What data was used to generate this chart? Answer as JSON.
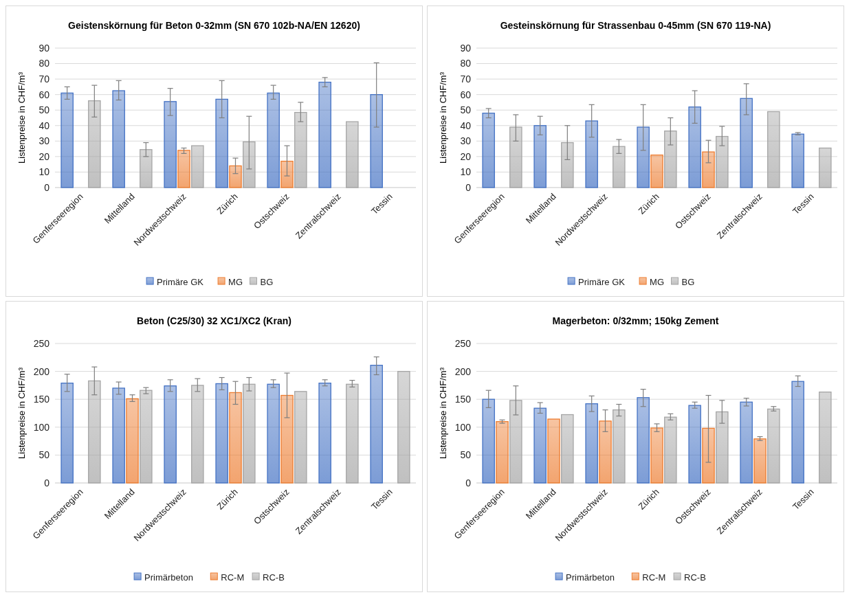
{
  "chart_data": [
    {
      "type": "bar",
      "title": "Geistenskörnung für Beton 0-32mm (SN 670 102b-NA/EN 12620)",
      "ylabel": "Listenpreise in CHF/m³",
      "categories": [
        "Genferseeregion",
        "Mittelland",
        "Nordwestschweiz",
        "Zürich",
        "Ostschweiz",
        "Zentralschweiz",
        "Tessin"
      ],
      "ylim": [
        0,
        90
      ],
      "yticks": [
        0,
        10,
        20,
        30,
        40,
        50,
        60,
        70,
        80,
        90
      ],
      "grid": "y",
      "legend": "bottom",
      "series": [
        {
          "name": "Primäre GK",
          "color": "#4472c4",
          "values": [
            61,
            62.5,
            55.5,
            57,
            61,
            68,
            60
          ],
          "errors": [
            [
              57,
              65
            ],
            [
              56.5,
              69
            ],
            [
              46.5,
              64
            ],
            [
              45,
              69
            ],
            [
              57,
              66
            ],
            [
              65,
              71
            ],
            [
              39,
              80.5
            ]
          ]
        },
        {
          "name": "MG",
          "color": "#ed7d31",
          "values": [
            null,
            null,
            24,
            14,
            17,
            null,
            null
          ],
          "errors": [
            null,
            null,
            [
              22,
              25.5
            ],
            [
              9,
              19
            ],
            [
              7.5,
              27
            ],
            null,
            null
          ]
        },
        {
          "name": "BG",
          "color": "#a5a5a5",
          "values": [
            56,
            24.5,
            27,
            29.5,
            48.5,
            42.5,
            null
          ],
          "errors": [
            [
              45.5,
              66
            ],
            [
              20,
              29
            ],
            null,
            [
              12,
              46
            ],
            [
              42.5,
              55
            ],
            null,
            null
          ]
        }
      ]
    },
    {
      "type": "bar",
      "title": "Gesteinskörnung für Strassenbau 0-45mm (SN 670 119-NA)",
      "ylabel": "Listenpreise in CHF/m³",
      "categories": [
        "Genferseeregion",
        "Mittelland",
        "Nordwestschweiz",
        "Zürich",
        "Ostschweiz",
        "Zentralschweiz",
        "Tessin"
      ],
      "ylim": [
        0,
        90
      ],
      "yticks": [
        0,
        10,
        20,
        30,
        40,
        50,
        60,
        70,
        80,
        90
      ],
      "grid": "y",
      "legend": "bottom",
      "series": [
        {
          "name": "Primäre GK",
          "color": "#4472c4",
          "values": [
            48,
            40,
            43,
            39,
            52,
            57.5,
            34.5
          ],
          "errors": [
            [
              45,
              51
            ],
            [
              34,
              46
            ],
            [
              32.5,
              53.5
            ],
            [
              24,
              53.5
            ],
            [
              41.5,
              62.5
            ],
            [
              47,
              67
            ],
            [
              34,
              35.5
            ]
          ]
        },
        {
          "name": "MG",
          "color": "#ed7d31",
          "values": [
            0,
            0,
            0,
            21,
            23,
            0,
            0
          ],
          "errors": [
            null,
            null,
            null,
            null,
            [
              16,
              30.5
            ],
            null,
            null
          ]
        },
        {
          "name": "BG",
          "color": "#a5a5a5",
          "values": [
            39,
            29,
            26.5,
            36.5,
            33,
            49,
            25.5
          ],
          "errors": [
            [
              30,
              47
            ],
            [
              18,
              40
            ],
            [
              22,
              31
            ],
            [
              27.5,
              45
            ],
            [
              27,
              39.5
            ],
            null,
            null
          ]
        }
      ]
    },
    {
      "type": "bar",
      "title": "Beton (C25/30) 32 XC1/XC2 (Kran)",
      "ylabel": "Listenpreise in CHF/m³",
      "categories": [
        "Genferseeregion",
        "Mittelland",
        "Nordwestschweiz",
        "Zürich",
        "Ostschweiz",
        "Zentralschweiz",
        "Tessin"
      ],
      "ylim": [
        0,
        250
      ],
      "yticks": [
        0,
        50,
        100,
        150,
        200,
        250
      ],
      "grid": "y",
      "legend": "bottom",
      "series": [
        {
          "name": "Primärbeton",
          "color": "#4472c4",
          "values": [
            179,
            170,
            174,
            178,
            177,
            179,
            211
          ],
          "errors": [
            [
              164,
              195
            ],
            [
              159,
              181
            ],
            [
              164,
              185
            ],
            [
              167,
              189
            ],
            [
              171,
              185
            ],
            [
              174,
              185
            ],
            [
              194,
              226
            ]
          ]
        },
        {
          "name": "RC-M",
          "color": "#ed7d31",
          "values": [
            0,
            151,
            0,
            162,
            157,
            0,
            0
          ],
          "errors": [
            null,
            [
              146,
              158
            ],
            null,
            [
              141,
              182
            ],
            [
              117,
              197
            ],
            null,
            null
          ]
        },
        {
          "name": "RC-B",
          "color": "#a5a5a5",
          "values": [
            183,
            166,
            175,
            177,
            164,
            177,
            200
          ],
          "errors": [
            [
              158,
              208
            ],
            [
              160,
              171
            ],
            [
              164,
              187
            ],
            [
              165,
              189
            ],
            null,
            [
              172,
              184
            ],
            null
          ]
        }
      ]
    },
    {
      "type": "bar",
      "title": "Magerbeton: 0/32mm; 150kg Zement",
      "ylabel": "Listenpreise in CHF/m³",
      "categories": [
        "Genferseeregion",
        "Mittelland",
        "Nordwestschweiz",
        "Zürich",
        "Ostschweiz",
        "Zentralschweiz",
        "Tessin"
      ],
      "ylim": [
        0,
        250
      ],
      "yticks": [
        0,
        50,
        100,
        150,
        200,
        250
      ],
      "grid": "y",
      "legend": "bottom",
      "series": [
        {
          "name": "Primärbeton",
          "color": "#4472c4",
          "values": [
            150,
            134,
            142,
            153,
            139,
            145,
            182
          ],
          "errors": [
            [
              135,
              166
            ],
            [
              125,
              144
            ],
            [
              128,
              156
            ],
            [
              137,
              168
            ],
            [
              134,
              145
            ],
            [
              138,
              152
            ],
            [
              173,
              192
            ]
          ]
        },
        {
          "name": "RC-M",
          "color": "#ed7d31",
          "values": [
            110,
            114.5,
            111,
            98.5,
            98,
            79,
            0
          ],
          "errors": [
            [
              107,
              113
            ],
            null,
            [
              92,
              131
            ],
            [
              92,
              106
            ],
            [
              37,
              157
            ],
            [
              76,
              83
            ],
            null
          ]
        },
        {
          "name": "RC-B",
          "color": "#a5a5a5",
          "values": [
            148,
            122.5,
            131,
            118,
            127.5,
            132.5,
            163
          ],
          "errors": [
            [
              122,
              174
            ],
            null,
            [
              120,
              141
            ],
            [
              113,
              124
            ],
            [
              107,
              148
            ],
            [
              129,
              137
            ],
            null
          ]
        }
      ]
    }
  ]
}
